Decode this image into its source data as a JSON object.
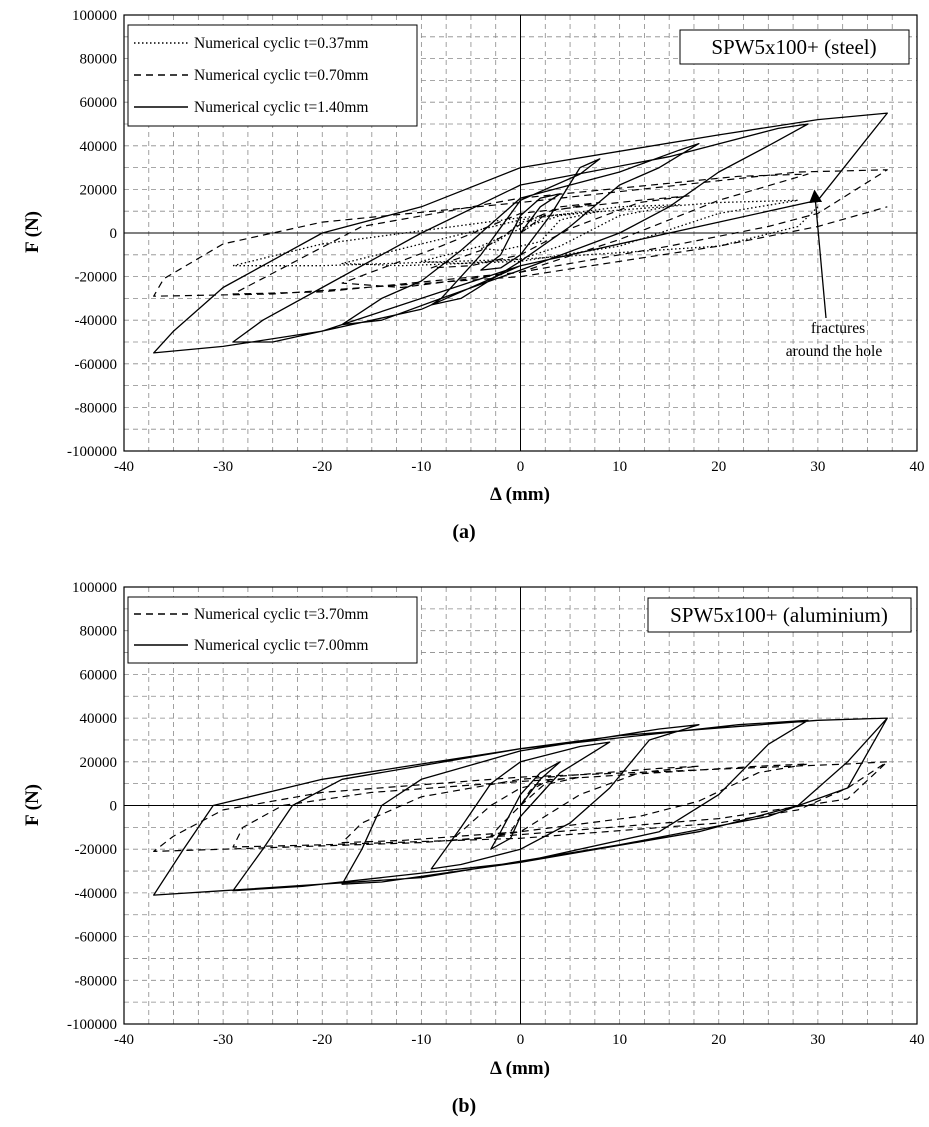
{
  "chart_data": [
    {
      "type": "line",
      "caption": "(a)",
      "xlabel": "Δ (mm)",
      "ylabel": "F (N)",
      "xlim": [
        -40,
        40
      ],
      "ylim": [
        -100000,
        100000
      ],
      "x_ticks": [
        -40,
        -30,
        -20,
        -10,
        0,
        10,
        20,
        30,
        40
      ],
      "y_ticks": [
        100000,
        80000,
        60000,
        40000,
        20000,
        0,
        -20000,
        -40000,
        -60000,
        -80000,
        -100000
      ],
      "grid": "dashed major and minor",
      "legend_placement": "top-left",
      "tag": "SPW5x100+ (steel)",
      "annotation": {
        "lines": [
          "fractures",
          "around the hole"
        ],
        "points_to": [
          30,
          15000
        ]
      },
      "series": [
        {
          "name": "Numerical cyclic t=0.37mm",
          "style": "dotted",
          "points": [
            [
              0,
              0
            ],
            [
              2,
              6000
            ],
            [
              0,
              5000
            ],
            [
              -2,
              -3000
            ],
            [
              -4,
              -7000
            ],
            [
              -2,
              -8000
            ],
            [
              2,
              -4000
            ],
            [
              4,
              6000
            ],
            [
              8,
              10000
            ],
            [
              4,
              8000
            ],
            [
              0,
              2000
            ],
            [
              -4,
              -6000
            ],
            [
              -10,
              -13000
            ],
            [
              -6,
              -14000
            ],
            [
              0,
              -12000
            ],
            [
              4,
              -6000
            ],
            [
              10,
              8000
            ],
            [
              16,
              13000
            ],
            [
              10,
              12000
            ],
            [
              0,
              6000
            ],
            [
              -10,
              -5000
            ],
            [
              -18,
              -14000
            ],
            [
              -12,
              -15000
            ],
            [
              0,
              -13000
            ],
            [
              10,
              -6000
            ],
            [
              20,
              9000
            ],
            [
              28,
              15000
            ],
            [
              20,
              14000
            ],
            [
              0,
              7000
            ],
            [
              -20,
              -5000
            ],
            [
              -29,
              -15000
            ],
            [
              -20,
              -15000
            ],
            [
              0,
              -12000
            ],
            [
              20,
              -6000
            ],
            [
              28,
              3000
            ],
            [
              30,
              12000
            ]
          ]
        },
        {
          "name": "Numerical cyclic t=0.70mm",
          "style": "dashed",
          "points": [
            [
              0,
              0
            ],
            [
              3,
              10000
            ],
            [
              8,
              14000
            ],
            [
              4,
              12000
            ],
            [
              0,
              4000
            ],
            [
              -4,
              -8000
            ],
            [
              -9,
              -16000
            ],
            [
              -5,
              -15000
            ],
            [
              0,
              -10000
            ],
            [
              5,
              2000
            ],
            [
              12,
              14000
            ],
            [
              17,
              17000
            ],
            [
              12,
              15000
            ],
            [
              0,
              9000
            ],
            [
              -8,
              -6000
            ],
            [
              -18,
              -23000
            ],
            [
              -12,
              -25000
            ],
            [
              0,
              -18000
            ],
            [
              10,
              -3000
            ],
            [
              20,
              15000
            ],
            [
              29,
              27000
            ],
            [
              22,
              26000
            ],
            [
              0,
              16000
            ],
            [
              -16,
              3000
            ],
            [
              -29,
              -28000
            ],
            [
              -20,
              -27000
            ],
            [
              0,
              -18000
            ],
            [
              15,
              -6000
            ],
            [
              25,
              3000
            ],
            [
              30,
              9000
            ],
            [
              37,
              29000
            ],
            [
              28,
              28000
            ],
            [
              0,
              14000
            ],
            [
              -20,
              5000
            ],
            [
              -30,
              -5000
            ],
            [
              -36,
              -21000
            ],
            [
              -37,
              -29000
            ],
            [
              -25,
              -28000
            ],
            [
              0,
              -20000
            ],
            [
              20,
              -6000
            ],
            [
              30,
              3000
            ],
            [
              37,
              12000
            ]
          ]
        },
        {
          "name": "Numerical cyclic t=1.40mm",
          "style": "solid",
          "points": [
            [
              0,
              0
            ],
            [
              2,
              12000
            ],
            [
              4,
              18000
            ],
            [
              2,
              16000
            ],
            [
              0,
              8000
            ],
            [
              -2,
              -10000
            ],
            [
              -4,
              -17000
            ],
            [
              -2,
              -16000
            ],
            [
              0,
              -10000
            ],
            [
              3,
              8000
            ],
            [
              6,
              30000
            ],
            [
              8,
              34000
            ],
            [
              6,
              27000
            ],
            [
              0,
              15000
            ],
            [
              -4,
              -10000
            ],
            [
              -8,
              -30000
            ],
            [
              -9,
              -33000
            ],
            [
              -6,
              -30000
            ],
            [
              0,
              -13000
            ],
            [
              5,
              3000
            ],
            [
              10,
              22000
            ],
            [
              14,
              30000
            ],
            [
              18,
              41000
            ],
            [
              16,
              38000
            ],
            [
              10,
              28000
            ],
            [
              0,
              16000
            ],
            [
              -6,
              -8000
            ],
            [
              -10,
              -22000
            ],
            [
              -14,
              -30000
            ],
            [
              -18,
              -42000
            ],
            [
              -14,
              -40000
            ],
            [
              -8,
              -30000
            ],
            [
              0,
              -17000
            ],
            [
              10,
              0
            ],
            [
              15,
              12000
            ],
            [
              20,
              28000
            ],
            [
              25,
              40000
            ],
            [
              29,
              50000
            ],
            [
              26,
              48000
            ],
            [
              15,
              35000
            ],
            [
              0,
              22000
            ],
            [
              -10,
              0
            ],
            [
              -20,
              -25000
            ],
            [
              -26,
              -40000
            ],
            [
              -29,
              -50000
            ],
            [
              -25,
              -50000
            ],
            [
              -10,
              -35000
            ],
            [
              0,
              -15000
            ],
            [
              20,
              5000
            ],
            [
              30,
              15000
            ],
            [
              37,
              55000
            ],
            [
              30,
              52000
            ],
            [
              20,
              45000
            ],
            [
              0,
              30000
            ],
            [
              -10,
              12000
            ],
            [
              -20,
              0
            ],
            [
              -30,
              -25000
            ],
            [
              -35,
              -45000
            ],
            [
              -37,
              -55000
            ],
            [
              -30,
              -52000
            ],
            [
              -20,
              -45000
            ],
            [
              0,
              -15000
            ]
          ]
        }
      ]
    },
    {
      "type": "line",
      "caption": "(b)",
      "xlabel": "Δ (mm)",
      "ylabel": "F (N)",
      "xlim": [
        -40,
        40
      ],
      "ylim": [
        -100000,
        100000
      ],
      "x_ticks": [
        -40,
        -30,
        -20,
        -10,
        0,
        10,
        20,
        30,
        40
      ],
      "y_ticks": [
        100000,
        80000,
        60000,
        40000,
        20000,
        0,
        -20000,
        -40000,
        -60000,
        -80000,
        -100000
      ],
      "grid": "dashed major and minor",
      "legend_placement": "top-left",
      "tag": "SPW5x100+ (aluminium)",
      "series": [
        {
          "name": "Numerical cyclic t=3.70mm",
          "style": "dashed",
          "points": [
            [
              0,
              0
            ],
            [
              2,
              8000
            ],
            [
              3,
              12000
            ],
            [
              1,
              7000
            ],
            [
              0,
              0
            ],
            [
              -2,
              -9000
            ],
            [
              -3,
              -14000
            ],
            [
              -1,
              -12000
            ],
            [
              0,
              -5000
            ],
            [
              3,
              10000
            ],
            [
              6,
              13000
            ],
            [
              4,
              12000
            ],
            [
              0,
              8000
            ],
            [
              -3,
              0
            ],
            [
              -5,
              -8000
            ],
            [
              -7,
              -16000
            ],
            [
              -4,
              -15000
            ],
            [
              0,
              -12000
            ],
            [
              6,
              5000
            ],
            [
              12,
              15000
            ],
            [
              18,
              18000
            ],
            [
              14,
              17000
            ],
            [
              0,
              12000
            ],
            [
              -10,
              4000
            ],
            [
              -16,
              -8000
            ],
            [
              -18,
              -17000
            ],
            [
              -12,
              -16000
            ],
            [
              0,
              -12000
            ],
            [
              12,
              -5000
            ],
            [
              18,
              2000
            ],
            [
              24,
              15000
            ],
            [
              29,
              19000
            ],
            [
              24,
              18000
            ],
            [
              0,
              11000
            ],
            [
              -15,
              6000
            ],
            [
              -24,
              0
            ],
            [
              -28,
              -10000
            ],
            [
              -29,
              -19000
            ],
            [
              -20,
              -18000
            ],
            [
              0,
              -15000
            ],
            [
              20,
              -8000
            ],
            [
              28,
              -2000
            ],
            [
              33,
              8000
            ],
            [
              37,
              20000
            ],
            [
              33,
              19000
            ],
            [
              0,
              13000
            ],
            [
              -20,
              6000
            ],
            [
              -30,
              -2000
            ],
            [
              -35,
              -14000
            ],
            [
              -37,
              -21000
            ],
            [
              -30,
              -20000
            ],
            [
              -10,
              -17000
            ],
            [
              20,
              -6000
            ],
            [
              33,
              3000
            ],
            [
              37,
              20000
            ]
          ]
        },
        {
          "name": "Numerical cyclic t=7.00mm",
          "style": "solid",
          "points": [
            [
              0,
              0
            ],
            [
              2,
              12000
            ],
            [
              4,
              20000
            ],
            [
              2,
              15000
            ],
            [
              0,
              5000
            ],
            [
              -2,
              -12000
            ],
            [
              -3,
              -20000
            ],
            [
              -1,
              -15000
            ],
            [
              0,
              -5000
            ],
            [
              4,
              15000
            ],
            [
              9,
              29000
            ],
            [
              6,
              27000
            ],
            [
              0,
              20000
            ],
            [
              -3,
              10000
            ],
            [
              -6,
              -10000
            ],
            [
              -9,
              -29000
            ],
            [
              -6,
              -27000
            ],
            [
              0,
              -20000
            ],
            [
              5,
              -8000
            ],
            [
              9,
              8000
            ],
            [
              13,
              30000
            ],
            [
              18,
              37000
            ],
            [
              14,
              35000
            ],
            [
              0,
              25000
            ],
            [
              -10,
              12000
            ],
            [
              -14,
              0
            ],
            [
              -16,
              -20000
            ],
            [
              -18,
              -36000
            ],
            [
              -14,
              -35000
            ],
            [
              0,
              -26000
            ],
            [
              14,
              -12000
            ],
            [
              20,
              5000
            ],
            [
              25,
              28000
            ],
            [
              29,
              39000
            ],
            [
              22,
              37000
            ],
            [
              0,
              26000
            ],
            [
              -18,
              12000
            ],
            [
              -23,
              0
            ],
            [
              -26,
              -20000
            ],
            [
              -29,
              -39000
            ],
            [
              -22,
              -37000
            ],
            [
              0,
              -26000
            ],
            [
              18,
              -12000
            ],
            [
              28,
              0
            ],
            [
              33,
              20000
            ],
            [
              37,
              40000
            ],
            [
              30,
              39000
            ],
            [
              10,
              32000
            ],
            [
              0,
              26000
            ],
            [
              -20,
              12000
            ],
            [
              -31,
              0
            ],
            [
              -34,
              -20000
            ],
            [
              -37,
              -41000
            ],
            [
              -30,
              -39000
            ],
            [
              -10,
              -33000
            ],
            [
              10,
              -18000
            ],
            [
              25,
              -5000
            ],
            [
              33,
              8000
            ],
            [
              37,
              40000
            ]
          ]
        }
      ]
    }
  ]
}
